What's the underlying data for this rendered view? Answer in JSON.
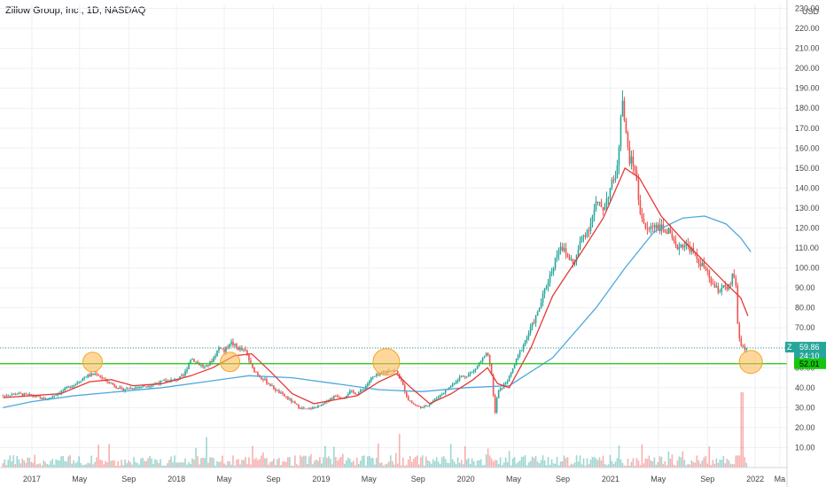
{
  "header": {
    "title": "Zillow Group, Inc., 1D, NASDAQ"
  },
  "chart_data": {
    "type": "candlestick",
    "title": "Zillow Group, Inc., 1D, NASDAQ",
    "y_axis": {
      "currency": "USD",
      "ticks": [
        "10.00",
        "20.00",
        "30.00",
        "40.00",
        "50.00",
        "60.00",
        "70.00",
        "80.00",
        "90.00",
        "100.00",
        "110.00",
        "120.00",
        "130.00",
        "140.00",
        "150.00",
        "160.00",
        "170.00",
        "180.00",
        "190.00",
        "200.00",
        "210.00",
        "220.00",
        "230.00"
      ],
      "range": [
        0,
        232
      ]
    },
    "x_axis": {
      "ticks": [
        "2017",
        "May",
        "Sep",
        "2018",
        "May",
        "Sep",
        "2019",
        "May",
        "Sep",
        "2020",
        "May",
        "Sep",
        "2021",
        "May",
        "Sep",
        "2022",
        "Ma"
      ],
      "tick_dates": [
        2017.0,
        2017.33,
        2017.67,
        2018.0,
        2018.33,
        2018.67,
        2019.0,
        2019.33,
        2019.67,
        2020.0,
        2020.33,
        2020.67,
        2021.0,
        2021.33,
        2021.67,
        2022.0,
        2022.17
      ],
      "range": [
        2016.78,
        2022.22
      ]
    },
    "price_series": [
      [
        2016.8,
        36
      ],
      [
        2016.9,
        37
      ],
      [
        2017.0,
        36
      ],
      [
        2017.1,
        34
      ],
      [
        2017.2,
        38
      ],
      [
        2017.3,
        42
      ],
      [
        2017.38,
        46
      ],
      [
        2017.45,
        47
      ],
      [
        2017.5,
        44
      ],
      [
        2017.55,
        42
      ],
      [
        2017.62,
        39
      ],
      [
        2017.7,
        40
      ],
      [
        2017.8,
        41
      ],
      [
        2017.9,
        43
      ],
      [
        2018.0,
        44
      ],
      [
        2018.05,
        46
      ],
      [
        2018.1,
        55
      ],
      [
        2018.15,
        52
      ],
      [
        2018.2,
        50
      ],
      [
        2018.25,
        54
      ],
      [
        2018.3,
        61
      ],
      [
        2018.33,
        58
      ],
      [
        2018.37,
        63
      ],
      [
        2018.42,
        60
      ],
      [
        2018.48,
        58
      ],
      [
        2018.52,
        50
      ],
      [
        2018.57,
        46
      ],
      [
        2018.62,
        43
      ],
      [
        2018.7,
        38
      ],
      [
        2018.78,
        34
      ],
      [
        2018.85,
        30
      ],
      [
        2018.9,
        29
      ],
      [
        2019.0,
        31
      ],
      [
        2019.05,
        34
      ],
      [
        2019.1,
        36
      ],
      [
        2019.15,
        35
      ],
      [
        2019.2,
        38
      ],
      [
        2019.25,
        37
      ],
      [
        2019.3,
        40
      ],
      [
        2019.35,
        45
      ],
      [
        2019.42,
        47
      ],
      [
        2019.48,
        49
      ],
      [
        2019.52,
        48
      ],
      [
        2019.55,
        44
      ],
      [
        2019.6,
        34
      ],
      [
        2019.65,
        31
      ],
      [
        2019.7,
        30
      ],
      [
        2019.75,
        32
      ],
      [
        2019.8,
        35
      ],
      [
        2019.85,
        38
      ],
      [
        2019.9,
        41
      ],
      [
        2019.95,
        45
      ],
      [
        2020.0,
        46
      ],
      [
        2020.05,
        48
      ],
      [
        2020.1,
        53
      ],
      [
        2020.15,
        57
      ],
      [
        2020.18,
        46
      ],
      [
        2020.2,
        26
      ],
      [
        2020.22,
        38
      ],
      [
        2020.25,
        40
      ],
      [
        2020.3,
        45
      ],
      [
        2020.35,
        54
      ],
      [
        2020.4,
        62
      ],
      [
        2020.45,
        70
      ],
      [
        2020.5,
        78
      ],
      [
        2020.55,
        90
      ],
      [
        2020.6,
        100
      ],
      [
        2020.65,
        112
      ],
      [
        2020.7,
        106
      ],
      [
        2020.75,
        102
      ],
      [
        2020.8,
        115
      ],
      [
        2020.85,
        120
      ],
      [
        2020.9,
        132
      ],
      [
        2020.95,
        130
      ],
      [
        2021.0,
        140
      ],
      [
        2021.05,
        150
      ],
      [
        2021.08,
        190
      ],
      [
        2021.1,
        170
      ],
      [
        2021.13,
        155
      ],
      [
        2021.17,
        150
      ],
      [
        2021.2,
        130
      ],
      [
        2021.25,
        118
      ],
      [
        2021.3,
        122
      ],
      [
        2021.35,
        120
      ],
      [
        2021.4,
        118
      ],
      [
        2021.45,
        110
      ],
      [
        2021.5,
        112
      ],
      [
        2021.55,
        110
      ],
      [
        2021.6,
        104
      ],
      [
        2021.65,
        100
      ],
      [
        2021.7,
        92
      ],
      [
        2021.75,
        88
      ],
      [
        2021.78,
        92
      ],
      [
        2021.8,
        88
      ],
      [
        2021.83,
        92
      ],
      [
        2021.85,
        98
      ],
      [
        2021.87,
        88
      ],
      [
        2021.88,
        70
      ],
      [
        2021.89,
        65
      ],
      [
        2021.9,
        62
      ],
      [
        2021.92,
        60
      ],
      [
        2021.94,
        59.86
      ]
    ],
    "ema_red": [
      [
        2016.8,
        35
      ],
      [
        2017.0,
        36
      ],
      [
        2017.2,
        37
      ],
      [
        2017.4,
        43
      ],
      [
        2017.55,
        44
      ],
      [
        2017.7,
        41
      ],
      [
        2017.9,
        42
      ],
      [
        2018.1,
        46
      ],
      [
        2018.25,
        50
      ],
      [
        2018.4,
        56
      ],
      [
        2018.52,
        57
      ],
      [
        2018.65,
        48
      ],
      [
        2018.8,
        37
      ],
      [
        2018.95,
        32
      ],
      [
        2019.1,
        34
      ],
      [
        2019.25,
        36
      ],
      [
        2019.4,
        43
      ],
      [
        2019.52,
        47
      ],
      [
        2019.62,
        40
      ],
      [
        2019.75,
        32
      ],
      [
        2019.9,
        37
      ],
      [
        2020.05,
        44
      ],
      [
        2020.15,
        50
      ],
      [
        2020.22,
        42
      ],
      [
        2020.3,
        40
      ],
      [
        2020.45,
        60
      ],
      [
        2020.6,
        86
      ],
      [
        2020.8,
        108
      ],
      [
        2020.95,
        125
      ],
      [
        2021.1,
        150
      ],
      [
        2021.2,
        145
      ],
      [
        2021.35,
        126
      ],
      [
        2021.5,
        114
      ],
      [
        2021.65,
        103
      ],
      [
        2021.8,
        92
      ],
      [
        2021.9,
        85
      ],
      [
        2021.95,
        76
      ]
    ],
    "ma_blue": [
      [
        2016.8,
        30
      ],
      [
        2017.0,
        33
      ],
      [
        2017.3,
        36
      ],
      [
        2017.6,
        38
      ],
      [
        2017.9,
        40
      ],
      [
        2018.2,
        43
      ],
      [
        2018.5,
        46
      ],
      [
        2018.8,
        45
      ],
      [
        2019.1,
        42
      ],
      [
        2019.4,
        39
      ],
      [
        2019.7,
        38
      ],
      [
        2020.0,
        40
      ],
      [
        2020.3,
        41
      ],
      [
        2020.6,
        55
      ],
      [
        2020.9,
        80
      ],
      [
        2021.1,
        100
      ],
      [
        2021.3,
        118
      ],
      [
        2021.5,
        125
      ],
      [
        2021.65,
        126
      ],
      [
        2021.8,
        122
      ],
      [
        2021.9,
        115
      ],
      [
        2021.97,
        108
      ]
    ],
    "horizontal_line": {
      "value": 52.01,
      "color": "#16c60c"
    },
    "last_price_line": {
      "value": 59.86
    },
    "highlight_circles": [
      2017.42,
      2018.37,
      2019.45,
      2021.97
    ],
    "price_tags": {
      "symbol": "Z",
      "last": "59.86",
      "countdown": "24:10",
      "level": "52.01"
    },
    "colors": {
      "up": "#26a69a",
      "down": "#ef5350",
      "ema": "#e53935",
      "ma": "#4fa8dc",
      "level": "#16c60c",
      "circle_fill": "rgba(255,183,77,0.55)",
      "circle_stroke": "#f5a623"
    },
    "grid": true
  }
}
